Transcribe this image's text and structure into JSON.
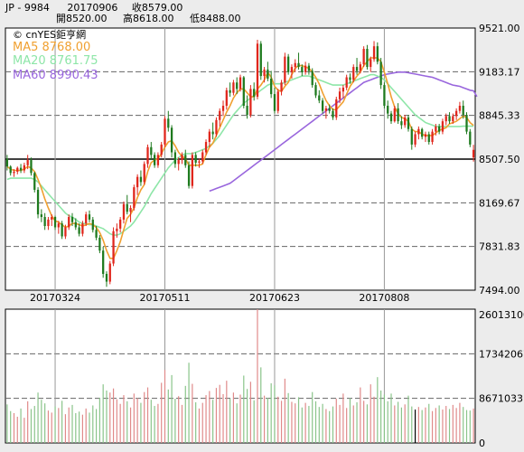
{
  "header": {
    "symbol": "JP - 9984",
    "date": "20170906",
    "close_label": "收8579.00",
    "open_label": "開8520.00",
    "high_label": "高8618.00",
    "low_label": "低8488.00"
  },
  "legend": {
    "source": "© cnYES鉅亨網",
    "ma5": "MA5 8768.00",
    "ma20": "MA20 8761.75",
    "ma60": "MA60 8990.43"
  },
  "colors": {
    "up": "#e0261c",
    "down": "#1e7a1e",
    "ma5": "#f0a030",
    "ma20": "#8ee6a8",
    "ma60": "#9966dd",
    "volume": "#e08a8a",
    "volume_alt": "#8ac48a"
  },
  "chart_data": {
    "type": "candlestick",
    "price_axis": {
      "ticks": [
        "9521.00",
        "9183.17",
        "8845.33",
        "8507.50",
        "8169.67",
        "7831.83",
        "7494.00"
      ],
      "ylim": [
        7494,
        9521
      ]
    },
    "volume_axis": {
      "ticks": [
        "26013100",
        "17342067",
        "8671033",
        "0"
      ],
      "ylim": [
        0,
        26013100
      ]
    },
    "date_ticks": [
      "20170324",
      "20170511",
      "20170623",
      "20170808"
    ],
    "reference_line": 8507.5,
    "last_close": 8579,
    "ohlc": [
      [
        8510,
        8540,
        8420,
        8450
      ],
      [
        8450,
        8460,
        8380,
        8400
      ],
      [
        8400,
        8430,
        8370,
        8410
      ],
      [
        8410,
        8450,
        8390,
        8440
      ],
      [
        8440,
        8470,
        8400,
        8420
      ],
      [
        8420,
        8480,
        8400,
        8460
      ],
      [
        8460,
        8540,
        8430,
        8500
      ],
      [
        8500,
        8520,
        8380,
        8400
      ],
      [
        8400,
        8410,
        8250,
        8270
      ],
      [
        8270,
        8290,
        8050,
        8080
      ],
      [
        8080,
        8120,
        8020,
        8060
      ],
      [
        8060,
        8090,
        7960,
        7990
      ],
      [
        7990,
        8060,
        7960,
        8040
      ],
      [
        8040,
        8080,
        7990,
        8060
      ],
      [
        8060,
        8070,
        7960,
        7980
      ],
      [
        7980,
        8030,
        7930,
        8010
      ],
      [
        8010,
        8030,
        7890,
        7910
      ],
      [
        7910,
        8000,
        7890,
        7980
      ],
      [
        7980,
        8080,
        7960,
        8060
      ],
      [
        8060,
        8090,
        7990,
        8020
      ],
      [
        8020,
        8050,
        7960,
        7980
      ],
      [
        7980,
        8010,
        7910,
        7930
      ],
      [
        7930,
        8030,
        7910,
        8010
      ],
      [
        8010,
        8100,
        7990,
        8080
      ],
      [
        8080,
        8110,
        8020,
        8040
      ],
      [
        8040,
        8060,
        7940,
        7960
      ],
      [
        7960,
        7990,
        7880,
        7900
      ],
      [
        7900,
        7920,
        7780,
        7800
      ],
      [
        7800,
        7830,
        7590,
        7620
      ],
      [
        7620,
        7640,
        7520,
        7560
      ],
      [
        7560,
        7720,
        7540,
        7700
      ],
      [
        7700,
        7980,
        7680,
        7950
      ],
      [
        7950,
        8010,
        7900,
        7970
      ],
      [
        7970,
        8060,
        7940,
        8040
      ],
      [
        8040,
        8180,
        8010,
        8160
      ],
      [
        8160,
        8230,
        8080,
        8100
      ],
      [
        8100,
        8150,
        8020,
        8130
      ],
      [
        8130,
        8310,
        8110,
        8290
      ],
      [
        8290,
        8390,
        8230,
        8370
      ],
      [
        8370,
        8420,
        8300,
        8330
      ],
      [
        8330,
        8490,
        8310,
        8470
      ],
      [
        8470,
        8620,
        8440,
        8600
      ],
      [
        8600,
        8640,
        8500,
        8540
      ],
      [
        8540,
        8560,
        8440,
        8460
      ],
      [
        8460,
        8560,
        8440,
        8540
      ],
      [
        8540,
        8640,
        8520,
        8620
      ],
      [
        8620,
        8840,
        8600,
        8820
      ],
      [
        8820,
        8880,
        8720,
        8750
      ],
      [
        8750,
        8770,
        8520,
        8560
      ],
      [
        8560,
        8580,
        8440,
        8470
      ],
      [
        8470,
        8520,
        8420,
        8500
      ],
      [
        8500,
        8560,
        8470,
        8540
      ],
      [
        8540,
        8580,
        8440,
        8460
      ],
      [
        8460,
        8490,
        8280,
        8300
      ],
      [
        8300,
        8560,
        8280,
        8540
      ],
      [
        8540,
        8560,
        8450,
        8480
      ],
      [
        8480,
        8510,
        8440,
        8490
      ],
      [
        8490,
        8580,
        8470,
        8560
      ],
      [
        8560,
        8660,
        8540,
        8640
      ],
      [
        8640,
        8740,
        8600,
        8720
      ],
      [
        8720,
        8790,
        8660,
        8700
      ],
      [
        8700,
        8830,
        8680,
        8810
      ],
      [
        8810,
        8900,
        8760,
        8880
      ],
      [
        8880,
        8960,
        8840,
        8920
      ],
      [
        8920,
        9060,
        8890,
        9040
      ],
      [
        9040,
        9100,
        8990,
        9020
      ],
      [
        9020,
        9120,
        9000,
        9100
      ],
      [
        9100,
        9140,
        9010,
        9050
      ],
      [
        9050,
        9160,
        9030,
        9140
      ],
      [
        9140,
        9150,
        8900,
        8920
      ],
      [
        8920,
        9000,
        8820,
        8850
      ],
      [
        8850,
        9080,
        8830,
        9050
      ],
      [
        9050,
        9100,
        8960,
        8990
      ],
      [
        8990,
        9430,
        8970,
        9400
      ],
      [
        9400,
        9420,
        9120,
        9150
      ],
      [
        9150,
        9220,
        9100,
        9200
      ],
      [
        9200,
        9260,
        9110,
        9130
      ],
      [
        9130,
        9190,
        8980,
        9010
      ],
      [
        9010,
        9060,
        8860,
        8880
      ],
      [
        8880,
        9050,
        8860,
        9030
      ],
      [
        9030,
        9120,
        9000,
        9100
      ],
      [
        9100,
        9330,
        9080,
        9300
      ],
      [
        9300,
        9320,
        9160,
        9180
      ],
      [
        9180,
        9240,
        9130,
        9220
      ],
      [
        9220,
        9280,
        9180,
        9250
      ],
      [
        9250,
        9330,
        9200,
        9220
      ],
      [
        9220,
        9240,
        9150,
        9180
      ],
      [
        9180,
        9260,
        9160,
        9230
      ],
      [
        9230,
        9250,
        9160,
        9190
      ],
      [
        9190,
        9210,
        9060,
        9080
      ],
      [
        9080,
        9100,
        8980,
        9000
      ],
      [
        9000,
        9040,
        8940,
        8960
      ],
      [
        8960,
        8980,
        8860,
        8880
      ],
      [
        8880,
        8920,
        8820,
        8900
      ],
      [
        8900,
        8930,
        8860,
        8880
      ],
      [
        8880,
        8900,
        8810,
        8830
      ],
      [
        8830,
        8990,
        8810,
        8970
      ],
      [
        8970,
        9060,
        8940,
        9030
      ],
      [
        9030,
        9080,
        8980,
        9060
      ],
      [
        9060,
        9160,
        9040,
        9140
      ],
      [
        9140,
        9170,
        9090,
        9120
      ],
      [
        9120,
        9240,
        9100,
        9220
      ],
      [
        9220,
        9290,
        9160,
        9190
      ],
      [
        9190,
        9260,
        9170,
        9240
      ],
      [
        9240,
        9380,
        9220,
        9360
      ],
      [
        9360,
        9390,
        9200,
        9220
      ],
      [
        9220,
        9300,
        9180,
        9280
      ],
      [
        9280,
        9420,
        9260,
        9380
      ],
      [
        9380,
        9410,
        9240,
        9260
      ],
      [
        9260,
        9290,
        9050,
        9080
      ],
      [
        9080,
        9100,
        8900,
        8920
      ],
      [
        8920,
        8960,
        8820,
        8860
      ],
      [
        8860,
        8880,
        8780,
        8800
      ],
      [
        8800,
        8920,
        8790,
        8900
      ],
      [
        8900,
        8940,
        8780,
        8800
      ],
      [
        8800,
        8840,
        8740,
        8770
      ],
      [
        8770,
        8850,
        8750,
        8830
      ],
      [
        8830,
        8850,
        8720,
        8740
      ],
      [
        8740,
        8760,
        8580,
        8620
      ],
      [
        8620,
        8720,
        8600,
        8700
      ],
      [
        8700,
        8760,
        8660,
        8740
      ],
      [
        8740,
        8750,
        8660,
        8680
      ],
      [
        8680,
        8720,
        8640,
        8700
      ],
      [
        8700,
        8720,
        8620,
        8640
      ],
      [
        8640,
        8740,
        8620,
        8720
      ],
      [
        8720,
        8780,
        8690,
        8760
      ],
      [
        8760,
        8780,
        8700,
        8720
      ],
      [
        8720,
        8820,
        8700,
        8800
      ],
      [
        8800,
        8860,
        8770,
        8840
      ],
      [
        8840,
        8870,
        8780,
        8800
      ],
      [
        8800,
        8860,
        8780,
        8840
      ],
      [
        8840,
        8900,
        8810,
        8880
      ],
      [
        8880,
        8950,
        8860,
        8920
      ],
      [
        8920,
        8960,
        8820,
        8850
      ],
      [
        8850,
        8870,
        8700,
        8720
      ],
      [
        8720,
        8740,
        8600,
        8620
      ],
      [
        8520,
        8618,
        8488,
        8579
      ]
    ],
    "ma5": [
      8450,
      8430,
      8420,
      8420,
      8420,
      8430,
      8450,
      8440,
      8410,
      8350,
      8280,
      8200,
      8130,
      8070,
      8030,
      8020,
      8000,
      7980,
      7990,
      8010,
      8010,
      8000,
      7990,
      8000,
      8010,
      8000,
      7980,
      7940,
      7880,
      7800,
      7740,
      7740,
      7800,
      7870,
      7960,
      8050,
      8080,
      8130,
      8210,
      8270,
      8310,
      8410,
      8480,
      8500,
      8510,
      8550,
      8600,
      8640,
      8650,
      8610,
      8560,
      8530,
      8510,
      8460,
      8460,
      8460,
      8460,
      8470,
      8540,
      8600,
      8630,
      8690,
      8750,
      8810,
      8870,
      8920,
      8980,
      9020,
      9050,
      9050,
      9020,
      8990,
      8990,
      9050,
      9080,
      9120,
      9180,
      9140,
      9070,
      9040,
      9030,
      9070,
      9100,
      9160,
      9210,
      9230,
      9230,
      9220,
      9210,
      9180,
      9140,
      9090,
      9020,
      8960,
      8920,
      8890,
      8890,
      8920,
      8950,
      9010,
      9070,
      9110,
      9150,
      9180,
      9230,
      9260,
      9290,
      9290,
      9290,
      9260,
      9180,
      9090,
      8990,
      8910,
      8860,
      8830,
      8820,
      8800,
      8740,
      8720,
      8720,
      8700,
      8690,
      8690,
      8690,
      8710,
      8730,
      8740,
      8750,
      8780,
      8790,
      8800,
      8820,
      8840,
      8830,
      8790,
      8768
    ],
    "ma20": [
      8350,
      8360,
      8360,
      8360,
      8360,
      8360,
      8360,
      8360,
      8350,
      8330,
      8300,
      8270,
      8240,
      8210,
      8180,
      8150,
      8120,
      8090,
      8070,
      8060,
      8040,
      8020,
      8010,
      8010,
      8000,
      8000,
      7990,
      7980,
      7970,
      7950,
      7930,
      7920,
      7920,
      7930,
      7950,
      7970,
      7990,
      8020,
      8060,
      8100,
      8140,
      8190,
      8240,
      8280,
      8320,
      8360,
      8400,
      8440,
      8470,
      8500,
      8520,
      8540,
      8550,
      8550,
      8550,
      8560,
      8570,
      8580,
      8590,
      8610,
      8630,
      8660,
      8690,
      8730,
      8770,
      8810,
      8850,
      8880,
      8910,
      8940,
      8960,
      8980,
      9000,
      9020,
      9040,
      9060,
      9080,
      9090,
      9090,
      9090,
      9090,
      9100,
      9110,
      9120,
      9130,
      9140,
      9150,
      9150,
      9150,
      9140,
      9130,
      9120,
      9110,
      9100,
      9090,
      9080,
      9080,
      9080,
      9080,
      9090,
      9100,
      9110,
      9120,
      9130,
      9140,
      9150,
      9160,
      9160,
      9150,
      9140,
      9120,
      9090,
      9060,
      9030,
      9000,
      8970,
      8940,
      8910,
      8880,
      8850,
      8830,
      8810,
      8790,
      8780,
      8770,
      8760,
      8760,
      8760,
      8760,
      8760,
      8760,
      8760,
      8760,
      8762,
      8762,
      8762,
      8761.75
    ],
    "ma60_start": 59,
    "ma60": [
      8260,
      8270,
      8280,
      8290,
      8300,
      8310,
      8320,
      8340,
      8360,
      8380,
      8400,
      8420,
      8440,
      8460,
      8480,
      8500,
      8520,
      8540,
      8560,
      8580,
      8600,
      8620,
      8640,
      8660,
      8680,
      8700,
      8720,
      8740,
      8760,
      8780,
      8800,
      8820,
      8840,
      8860,
      8880,
      8900,
      8920,
      8940,
      8960,
      8980,
      9000,
      9020,
      9040,
      9060,
      9080,
      9100,
      9110,
      9120,
      9130,
      9140,
      9150,
      9160,
      9165,
      9170,
      9175,
      9180,
      9180,
      9180,
      9175,
      9170,
      9165,
      9160,
      9155,
      9150,
      9145,
      9140,
      9130,
      9120,
      9110,
      9100,
      9090,
      9080,
      9075,
      9070,
      9060,
      9050,
      9040,
      9035,
      8990.43
    ],
    "volume": [
      7500000,
      6200000,
      5800000,
      5100000,
      6700000,
      4900000,
      8100000,
      6600000,
      7200000,
      9800000,
      8400000,
      7700000,
      6300000,
      5900000,
      7100000,
      6800000,
      8200000,
      5600000,
      6900000,
      7400000,
      5800000,
      6100000,
      5500000,
      6700000,
      5900000,
      7300000,
      6600000,
      8800000,
      11400000,
      10200000,
      9800000,
      10600000,
      8500000,
      7600000,
      9300000,
      8100000,
      6900000,
      9600000,
      8700000,
      7800000,
      9900000,
      10800000,
      8400000,
      7200000,
      7600000,
      11700000,
      14200000,
      10400000,
      13200000,
      8600000,
      9100000,
      7400000,
      11100000,
      15600000,
      11500000,
      7900000,
      6700000,
      7800000,
      9300000,
      10100000,
      8400000,
      10700000,
      11300000,
      9500000,
      12100000,
      8600000,
      9800000,
      7700000,
      9400000,
      13100000,
      10500000,
      11900000,
      8300000,
      26013100,
      14700000,
      9200000,
      8800000,
      11600000,
      11200000,
      9000000,
      8200000,
      12500000,
      9700000,
      8000000,
      7700000,
      8900000,
      6900000,
      7800000,
      7200000,
      9900000,
      8100000,
      7000000,
      7600000,
      6600000,
      6200000,
      7100000,
      8600000,
      7400000,
      9600000,
      6800000,
      8700000,
      7300000,
      7900000,
      10800000,
      8200000,
      7500000,
      11400000,
      9000000,
      12800000,
      10200000,
      9400000,
      8100000,
      9600000,
      7300000,
      8000000,
      6900000,
      7500000,
      9200000,
      7100000,
      6500000,
      7000000,
      6400000,
      6900000,
      7600000,
      6200000,
      6800000,
      7300000,
      6500000,
      7200000,
      6600000,
      7400000,
      6800000,
      7800000,
      7000000,
      6400000,
      6300000,
      6700000
    ]
  }
}
